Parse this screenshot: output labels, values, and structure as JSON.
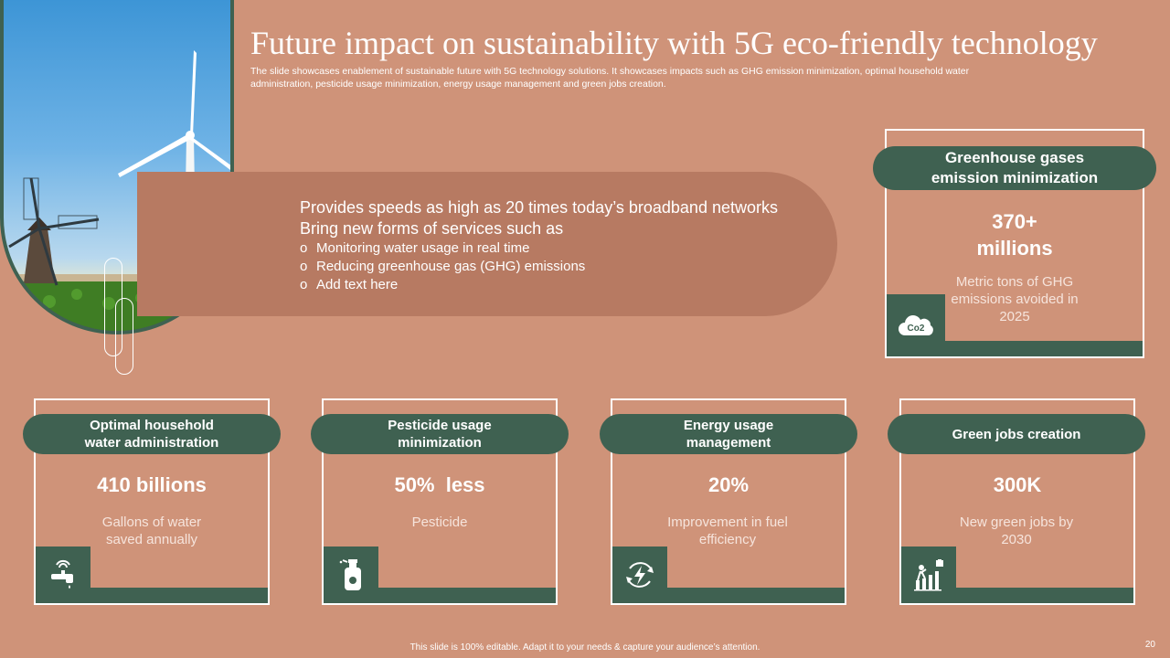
{
  "slide": {
    "title": "Future impact on sustainability with 5G eco-friendly technology",
    "subtitle": "The slide showcases enablement of sustainable future with 5G technology solutions. It showcases impacts such as GHG emission minimization, optimal household water administration, pesticide usage minimization, energy usage management and green jobs creation.",
    "page_number": "20",
    "footer": "This slide is 100% editable. Adapt it to your needs & capture your audience’s attention."
  },
  "banner": {
    "line1": "Provides speeds as high as 20 times today’s broadband networks",
    "line2": "Bring new forms of services such as",
    "bullet_glyph": "o",
    "bullets": [
      "Monitoring water usage in real time",
      "Reducing greenhouse gas (GHG) emissions",
      "Add text here"
    ]
  },
  "cards": {
    "ghg": {
      "title": "Greenhouse gases emission minimization",
      "value_line1": "370+",
      "value_line2": "millions",
      "description": "Metric tons of GHG emissions avoided in 2025",
      "icon_text": "Co2",
      "icon": "co2-cloud-icon"
    },
    "water": {
      "title": "Optimal household water administration",
      "value": "410 billions",
      "description": "Gallons of water saved annually",
      "icon": "water-tap-icon"
    },
    "pesticide": {
      "title": "Pesticide usage minimization",
      "value": "50%  less",
      "description": "Pesticide",
      "icon": "spray-bottle-icon"
    },
    "energy": {
      "title": "Energy usage management",
      "value": "20%",
      "description": "Improvement in fuel efficiency",
      "icon": "energy-cycle-icon"
    },
    "jobs": {
      "title": "Green jobs creation",
      "value": "300K",
      "description": "New green jobs by 2030",
      "icon": "growth-chart-icon"
    }
  },
  "colors": {
    "background": "#cf9379",
    "accent_green": "#3f6151",
    "banner": "#b77a62",
    "text": "#ffffff"
  }
}
